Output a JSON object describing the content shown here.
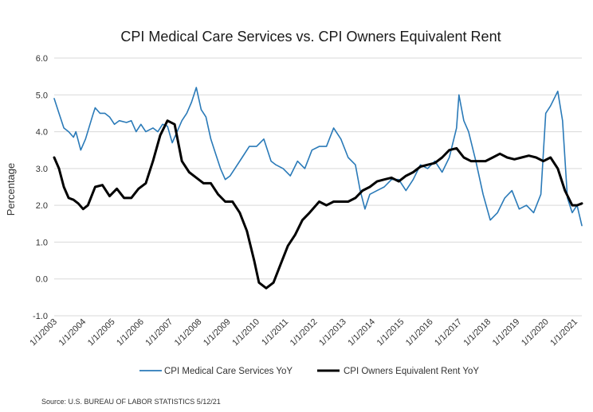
{
  "chart_data": {
    "type": "line",
    "title": "CPI Medical Care Services vs. CPI Owners Equivalent Rent",
    "xlabel": "",
    "ylabel": "Percentage",
    "ylim": [
      -1.0,
      6.0
    ],
    "y_ticks": [
      "6.0",
      "5.0",
      "4.0",
      "3.0",
      "2.0",
      "1.0",
      "0.0",
      "-1.0"
    ],
    "xlim": [
      "2003-01",
      "2021-04"
    ],
    "x_ticks": [
      "1/1/2003",
      "1/1/2004",
      "1/1/2005",
      "1/1/2006",
      "1/1/2007",
      "1/1/2008",
      "1/1/2009",
      "1/1/2010",
      "1/1/2011",
      "1/1/2012",
      "1/1/2013",
      "1/1/2014",
      "1/1/2015",
      "1/1/2016",
      "1/1/2017",
      "1/1/2018",
      "1/1/2019",
      "1/1/2020",
      "1/1/2021"
    ],
    "grid": "horizontal",
    "legend_position": "bottom",
    "source": "Source: U.S. BUREAU OF LABOR STATISTICS 5/12/21",
    "series": [
      {
        "name": "CPI Medical Care Services YoY",
        "color": "#2a7ab8",
        "points": [
          [
            "2003-01",
            4.9
          ],
          [
            "2003-03",
            4.5
          ],
          [
            "2003-05",
            4.1
          ],
          [
            "2003-07",
            4.0
          ],
          [
            "2003-09",
            3.85
          ],
          [
            "2003-10",
            4.0
          ],
          [
            "2003-12",
            3.5
          ],
          [
            "2004-02",
            3.8
          ],
          [
            "2004-05",
            4.45
          ],
          [
            "2004-06",
            4.65
          ],
          [
            "2004-08",
            4.5
          ],
          [
            "2004-10",
            4.5
          ],
          [
            "2004-12",
            4.4
          ],
          [
            "2005-02",
            4.2
          ],
          [
            "2005-04",
            4.3
          ],
          [
            "2005-07",
            4.25
          ],
          [
            "2005-09",
            4.3
          ],
          [
            "2005-11",
            4.0
          ],
          [
            "2006-01",
            4.2
          ],
          [
            "2006-03",
            4.0
          ],
          [
            "2006-06",
            4.1
          ],
          [
            "2006-08",
            4.0
          ],
          [
            "2006-10",
            4.2
          ],
          [
            "2006-12",
            4.15
          ],
          [
            "2007-02",
            3.7
          ],
          [
            "2007-04",
            4.0
          ],
          [
            "2007-06",
            4.3
          ],
          [
            "2007-08",
            4.5
          ],
          [
            "2007-10",
            4.8
          ],
          [
            "2007-12",
            5.2
          ],
          [
            "2008-02",
            4.6
          ],
          [
            "2008-04",
            4.4
          ],
          [
            "2008-06",
            3.8
          ],
          [
            "2008-08",
            3.4
          ],
          [
            "2008-10",
            3.0
          ],
          [
            "2008-12",
            2.7
          ],
          [
            "2009-02",
            2.8
          ],
          [
            "2009-04",
            3.0
          ],
          [
            "2009-07",
            3.3
          ],
          [
            "2009-10",
            3.6
          ],
          [
            "2010-01",
            3.6
          ],
          [
            "2010-04",
            3.8
          ],
          [
            "2010-07",
            3.2
          ],
          [
            "2010-09",
            3.1
          ],
          [
            "2010-12",
            3.0
          ],
          [
            "2011-03",
            2.8
          ],
          [
            "2011-06",
            3.2
          ],
          [
            "2011-09",
            3.0
          ],
          [
            "2011-12",
            3.5
          ],
          [
            "2012-03",
            3.6
          ],
          [
            "2012-06",
            3.6
          ],
          [
            "2012-09",
            4.1
          ],
          [
            "2012-12",
            3.8
          ],
          [
            "2013-03",
            3.3
          ],
          [
            "2013-06",
            3.1
          ],
          [
            "2013-08",
            2.4
          ],
          [
            "2013-10",
            1.9
          ],
          [
            "2013-12",
            2.3
          ],
          [
            "2014-03",
            2.4
          ],
          [
            "2014-06",
            2.5
          ],
          [
            "2014-09",
            2.7
          ],
          [
            "2014-12",
            2.7
          ],
          [
            "2015-03",
            2.4
          ],
          [
            "2015-06",
            2.7
          ],
          [
            "2015-09",
            3.1
          ],
          [
            "2015-12",
            3.0
          ],
          [
            "2016-03",
            3.2
          ],
          [
            "2016-06",
            2.9
          ],
          [
            "2016-09",
            3.3
          ],
          [
            "2016-12",
            4.1
          ],
          [
            "2017-01",
            5.0
          ],
          [
            "2017-03",
            4.3
          ],
          [
            "2017-05",
            4.0
          ],
          [
            "2017-08",
            3.2
          ],
          [
            "2017-11",
            2.3
          ],
          [
            "2018-02",
            1.6
          ],
          [
            "2018-05",
            1.8
          ],
          [
            "2018-08",
            2.2
          ],
          [
            "2018-11",
            2.4
          ],
          [
            "2019-02",
            1.9
          ],
          [
            "2019-05",
            2.0
          ],
          [
            "2019-08",
            1.8
          ],
          [
            "2019-11",
            2.3
          ],
          [
            "2020-01",
            4.5
          ],
          [
            "2020-03",
            4.7
          ],
          [
            "2020-06",
            5.1
          ],
          [
            "2020-08",
            4.3
          ],
          [
            "2020-10",
            2.2
          ],
          [
            "2020-12",
            1.8
          ],
          [
            "2021-02",
            2.0
          ],
          [
            "2021-04",
            1.45
          ]
        ]
      },
      {
        "name": "CPI Owners Equivalent Rent YoY",
        "color": "#000000",
        "points": [
          [
            "2003-01",
            3.3
          ],
          [
            "2003-03",
            3.0
          ],
          [
            "2003-05",
            2.5
          ],
          [
            "2003-07",
            2.2
          ],
          [
            "2003-09",
            2.15
          ],
          [
            "2003-11",
            2.05
          ],
          [
            "2004-01",
            1.9
          ],
          [
            "2004-03",
            2.0
          ],
          [
            "2004-06",
            2.5
          ],
          [
            "2004-09",
            2.55
          ],
          [
            "2004-12",
            2.25
          ],
          [
            "2005-03",
            2.45
          ],
          [
            "2005-06",
            2.2
          ],
          [
            "2005-09",
            2.2
          ],
          [
            "2005-12",
            2.45
          ],
          [
            "2006-03",
            2.6
          ],
          [
            "2006-06",
            3.2
          ],
          [
            "2006-09",
            3.9
          ],
          [
            "2006-12",
            4.3
          ],
          [
            "2007-03",
            4.2
          ],
          [
            "2007-06",
            3.2
          ],
          [
            "2007-09",
            2.9
          ],
          [
            "2007-12",
            2.75
          ],
          [
            "2008-03",
            2.6
          ],
          [
            "2008-06",
            2.6
          ],
          [
            "2008-09",
            2.3
          ],
          [
            "2008-12",
            2.1
          ],
          [
            "2009-03",
            2.1
          ],
          [
            "2009-06",
            1.8
          ],
          [
            "2009-09",
            1.3
          ],
          [
            "2009-12",
            0.5
          ],
          [
            "2010-02",
            -0.1
          ],
          [
            "2010-05",
            -0.25
          ],
          [
            "2010-08",
            -0.1
          ],
          [
            "2010-11",
            0.4
          ],
          [
            "2011-02",
            0.9
          ],
          [
            "2011-05",
            1.2
          ],
          [
            "2011-08",
            1.6
          ],
          [
            "2011-11",
            1.8
          ],
          [
            "2012-03",
            2.1
          ],
          [
            "2012-06",
            2.0
          ],
          [
            "2012-09",
            2.1
          ],
          [
            "2012-12",
            2.1
          ],
          [
            "2013-03",
            2.1
          ],
          [
            "2013-06",
            2.2
          ],
          [
            "2013-09",
            2.4
          ],
          [
            "2013-12",
            2.5
          ],
          [
            "2014-03",
            2.65
          ],
          [
            "2014-06",
            2.7
          ],
          [
            "2014-09",
            2.75
          ],
          [
            "2014-12",
            2.65
          ],
          [
            "2015-03",
            2.8
          ],
          [
            "2015-06",
            2.9
          ],
          [
            "2015-09",
            3.05
          ],
          [
            "2015-12",
            3.1
          ],
          [
            "2016-03",
            3.15
          ],
          [
            "2016-06",
            3.3
          ],
          [
            "2016-09",
            3.5
          ],
          [
            "2016-12",
            3.55
          ],
          [
            "2017-03",
            3.3
          ],
          [
            "2017-06",
            3.2
          ],
          [
            "2017-09",
            3.2
          ],
          [
            "2017-12",
            3.2
          ],
          [
            "2018-03",
            3.3
          ],
          [
            "2018-06",
            3.4
          ],
          [
            "2018-09",
            3.3
          ],
          [
            "2018-12",
            3.25
          ],
          [
            "2019-03",
            3.3
          ],
          [
            "2019-06",
            3.35
          ],
          [
            "2019-09",
            3.3
          ],
          [
            "2019-12",
            3.2
          ],
          [
            "2020-03",
            3.3
          ],
          [
            "2020-06",
            3.0
          ],
          [
            "2020-09",
            2.4
          ],
          [
            "2020-12",
            2.0
          ],
          [
            "2021-02",
            2.0
          ],
          [
            "2021-04",
            2.05
          ]
        ]
      }
    ]
  }
}
